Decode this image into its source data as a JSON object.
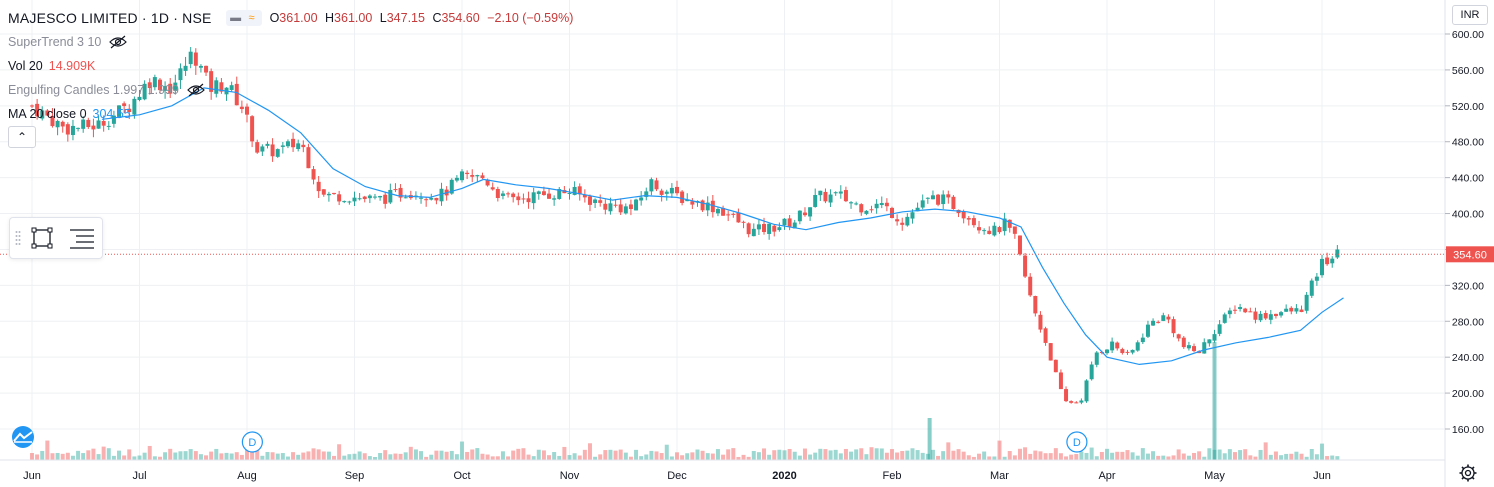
{
  "header": {
    "symbol_title": "MAJESCO LIMITED · 1D · NSE",
    "ohlc": [
      {
        "k": "O",
        "v": "361.00"
      },
      {
        "k": "H",
        "v": "361.00"
      },
      {
        "k": "L",
        "v": "347.15"
      },
      {
        "k": "C",
        "v": "354.60"
      }
    ],
    "change": "−2.10 (−0.59%)"
  },
  "indicators": {
    "supertrend": {
      "name": "SuperTrend 3 10"
    },
    "volume": {
      "name": "Vol 20",
      "value": "14.909K"
    },
    "engulfing": {
      "name": "Engulfing Candles 1.997 1.999"
    },
    "ma": {
      "name": "MA 20 close 0",
      "value": "304.55"
    }
  },
  "currency": "INR",
  "last_price": "354.60",
  "colors": {
    "up": "#26a69a",
    "down": "#ef5350",
    "ma": "#2196f3",
    "grid": "#eef0f3",
    "price_line": "#ef5350"
  },
  "icons": [
    "eye-off-icon",
    "rectangle-tool-icon",
    "object-tree-icon",
    "tradingview-logo-icon",
    "settings-gear-icon",
    "dividend-marker-icon"
  ],
  "chart_data": {
    "type": "candlestick",
    "title": "MAJESCO LIMITED · 1D · NSE",
    "x_ticks": [
      "Jun",
      "Jul",
      "Aug",
      "Sep",
      "Oct",
      "Nov",
      "Dec",
      "2020",
      "Feb",
      "Mar",
      "Apr",
      "May",
      "Jun"
    ],
    "x_tick_months": [
      0,
      1,
      2,
      3,
      4,
      5,
      6,
      7,
      8,
      9,
      10,
      11,
      12
    ],
    "y_ticks": [
      160,
      200,
      240,
      280,
      320,
      360,
      400,
      440,
      480,
      520,
      560,
      600
    ],
    "y_tick_labels": [
      "160.00",
      "200.00",
      "240.00",
      "280.00",
      "320.00",
      "360.00",
      "400.00",
      "440.00",
      "480.00",
      "520.00",
      "560.00",
      "600.00"
    ],
    "ylim": [
      130,
      620
    ],
    "last_value": 354.6,
    "dividend_markers": [
      {
        "label": "D",
        "month": 2.05
      },
      {
        "label": "D",
        "month": 9.72
      }
    ],
    "close_by_month": [
      [
        0,
        520
      ],
      [
        0.3,
        495
      ],
      [
        0.6,
        498
      ],
      [
        0.9,
        520
      ],
      [
        1.1,
        550
      ],
      [
        1.3,
        540
      ],
      [
        1.5,
        580
      ],
      [
        1.65,
        540
      ],
      [
        1.8,
        545
      ],
      [
        1.95,
        520
      ],
      [
        2.1,
        470
      ],
      [
        2.3,
        470
      ],
      [
        2.5,
        480
      ],
      [
        2.7,
        420
      ],
      [
        2.9,
        420
      ],
      [
        3.2,
        415
      ],
      [
        3.5,
        425
      ],
      [
        3.8,
        420
      ],
      [
        4.0,
        440
      ],
      [
        4.2,
        440
      ],
      [
        4.4,
        415
      ],
      [
        4.7,
        420
      ],
      [
        5.0,
        425
      ],
      [
        5.3,
        410
      ],
      [
        5.6,
        405
      ],
      [
        5.75,
        435
      ],
      [
        5.9,
        425
      ],
      [
        6.1,
        415
      ],
      [
        6.4,
        405
      ],
      [
        6.7,
        380
      ],
      [
        6.9,
        385
      ],
      [
        7.1,
        392
      ],
      [
        7.3,
        418
      ],
      [
        7.5,
        420
      ],
      [
        7.7,
        408
      ],
      [
        7.9,
        410
      ],
      [
        8.1,
        392
      ],
      [
        8.25,
        408
      ],
      [
        8.4,
        418
      ],
      [
        8.6,
        408
      ],
      [
        8.8,
        388
      ],
      [
        8.95,
        380
      ],
      [
        9.05,
        388
      ],
      [
        9.15,
        370
      ],
      [
        9.3,
        300
      ],
      [
        9.45,
        250
      ],
      [
        9.6,
        190
      ],
      [
        9.75,
        190
      ],
      [
        9.9,
        245
      ],
      [
        10.05,
        255
      ],
      [
        10.2,
        240
      ],
      [
        10.4,
        278
      ],
      [
        10.55,
        286
      ],
      [
        10.7,
        252
      ],
      [
        10.85,
        245
      ],
      [
        11.0,
        270
      ],
      [
        11.2,
        298
      ],
      [
        11.4,
        285
      ],
      [
        11.6,
        290
      ],
      [
        11.8,
        292
      ],
      [
        12.0,
        345
      ],
      [
        12.15,
        355
      ]
    ],
    "ma20_by_month": [
      [
        0.65,
        505
      ],
      [
        1.0,
        510
      ],
      [
        1.3,
        520
      ],
      [
        1.6,
        540
      ],
      [
        1.9,
        535
      ],
      [
        2.2,
        515
      ],
      [
        2.5,
        490
      ],
      [
        2.8,
        450
      ],
      [
        3.1,
        430
      ],
      [
        3.4,
        420
      ],
      [
        3.7,
        418
      ],
      [
        4.0,
        428
      ],
      [
        4.2,
        438
      ],
      [
        4.5,
        432
      ],
      [
        4.8,
        428
      ],
      [
        5.1,
        422
      ],
      [
        5.4,
        415
      ],
      [
        5.7,
        420
      ],
      [
        6.0,
        418
      ],
      [
        6.3,
        410
      ],
      [
        6.6,
        400
      ],
      [
        6.9,
        388
      ],
      [
        7.2,
        382
      ],
      [
        7.5,
        390
      ],
      [
        7.8,
        395
      ],
      [
        8.1,
        402
      ],
      [
        8.4,
        405
      ],
      [
        8.7,
        402
      ],
      [
        9.0,
        395
      ],
      [
        9.2,
        385
      ],
      [
        9.4,
        340
      ],
      [
        9.6,
        300
      ],
      [
        9.8,
        265
      ],
      [
        10.0,
        240
      ],
      [
        10.3,
        232
      ],
      [
        10.6,
        236
      ],
      [
        10.9,
        248
      ],
      [
        11.2,
        256
      ],
      [
        11.5,
        262
      ],
      [
        11.8,
        270
      ],
      [
        12.0,
        290
      ],
      [
        12.2,
        306
      ]
    ],
    "volume_spikes": [
      {
        "month": 8.35,
        "value": "large"
      },
      {
        "month": 11.0,
        "value": "very large"
      }
    ]
  }
}
